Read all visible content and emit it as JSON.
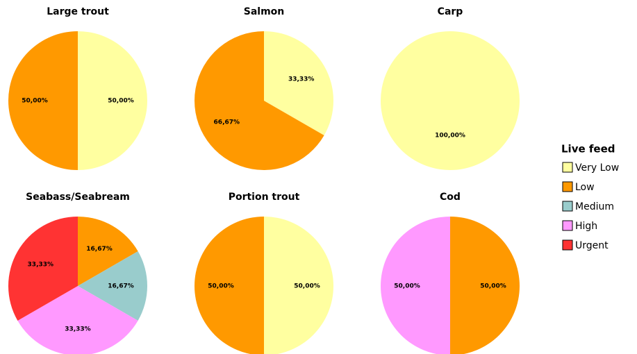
{
  "chart_data": {
    "type": "pie",
    "legend_title": "Live feed",
    "legend": "right",
    "categories": [
      "Very Low",
      "Low",
      "Medium",
      "High",
      "Urgent"
    ],
    "colors": [
      "#ffffa0",
      "#ff9900",
      "#99cccc",
      "#ff99ff",
      "#ff3333"
    ],
    "pies": [
      {
        "title": "Large trout",
        "values": [
          50,
          50,
          null,
          null,
          null
        ],
        "value_labels": [
          "50,00%",
          "50,00%",
          null,
          null,
          null
        ]
      },
      {
        "title": "Salmon",
        "values": [
          33.33,
          66.67,
          null,
          null,
          null
        ],
        "value_labels": [
          "33,33%",
          "66,67%",
          null,
          null,
          null
        ]
      },
      {
        "title": "Carp",
        "values": [
          100,
          null,
          null,
          null,
          null
        ],
        "value_labels": [
          "100,00%",
          null,
          null,
          null,
          null
        ]
      },
      {
        "title": "Seabass/Seabream",
        "values": [
          null,
          16.67,
          16.67,
          33.33,
          33.33
        ],
        "value_labels": [
          null,
          "16,67%",
          "16,67%",
          "33,33%",
          "33,33%"
        ]
      },
      {
        "title": "Portion trout",
        "values": [
          50,
          50,
          null,
          null,
          null
        ],
        "value_labels": [
          "50,00%",
          "50,00%",
          null,
          null,
          null
        ]
      },
      {
        "title": "Cod",
        "values": [
          null,
          50,
          null,
          50,
          null
        ],
        "value_labels": [
          null,
          "50,00%",
          null,
          "50,00%",
          null
        ]
      }
    ]
  }
}
